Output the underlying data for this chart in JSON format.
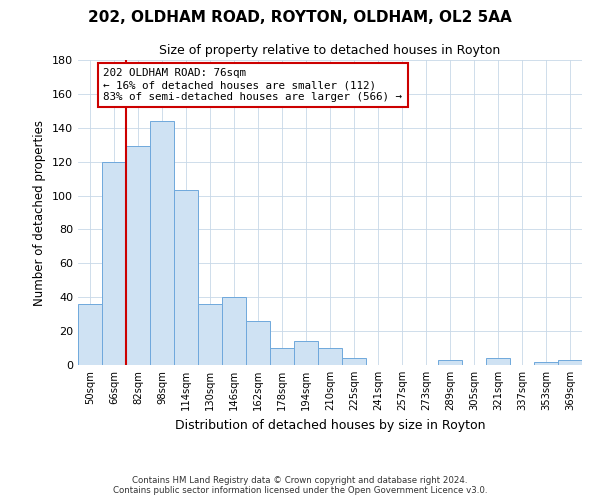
{
  "title": "202, OLDHAM ROAD, ROYTON, OLDHAM, OL2 5AA",
  "subtitle": "Size of property relative to detached houses in Royton",
  "xlabel": "Distribution of detached houses by size in Royton",
  "ylabel": "Number of detached properties",
  "bar_labels": [
    "50sqm",
    "66sqm",
    "82sqm",
    "98sqm",
    "114sqm",
    "130sqm",
    "146sqm",
    "162sqm",
    "178sqm",
    "194sqm",
    "210sqm",
    "225sqm",
    "241sqm",
    "257sqm",
    "273sqm",
    "289sqm",
    "305sqm",
    "321sqm",
    "337sqm",
    "353sqm",
    "369sqm"
  ],
  "bar_values": [
    36,
    120,
    129,
    144,
    103,
    36,
    40,
    26,
    10,
    14,
    10,
    4,
    0,
    0,
    0,
    3,
    0,
    4,
    0,
    2,
    3
  ],
  "bar_color": "#cfe2f3",
  "bar_edge_color": "#6fa8dc",
  "vline_color": "#cc0000",
  "annotation_text": "202 OLDHAM ROAD: 76sqm\n← 16% of detached houses are smaller (112)\n83% of semi-detached houses are larger (566) →",
  "annotation_box_color": "#ffffff",
  "annotation_box_edge_color": "#cc0000",
  "ylim": [
    0,
    180
  ],
  "yticks": [
    0,
    20,
    40,
    60,
    80,
    100,
    120,
    140,
    160,
    180
  ],
  "footer_line1": "Contains HM Land Registry data © Crown copyright and database right 2024.",
  "footer_line2": "Contains public sector information licensed under the Open Government Licence v3.0.",
  "bg_color": "#ffffff",
  "grid_color": "#c8d8e8"
}
